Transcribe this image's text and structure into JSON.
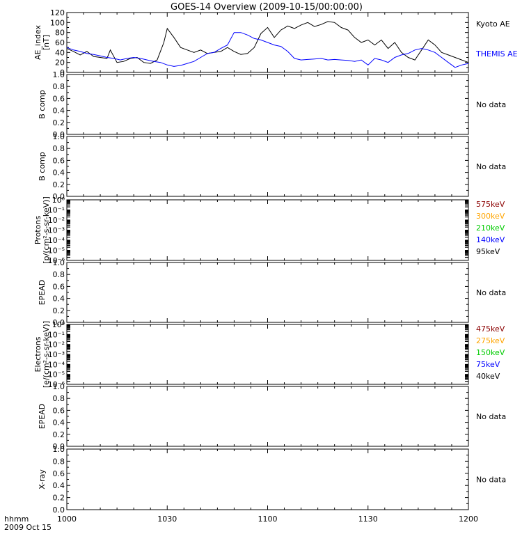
{
  "title": "GOES-14 Overview (2009-10-15/00:00:00)",
  "x_axis": {
    "label_line1": "hhmm",
    "label_line2": "2009 Oct 15",
    "ticks": [
      "1000",
      "1030",
      "1100",
      "1130",
      "1200"
    ],
    "range_minutes": [
      0,
      120
    ]
  },
  "chart_data": [
    {
      "type": "line",
      "ylabel": [
        "AE_index",
        "[nT]"
      ],
      "ylim": [
        0,
        120
      ],
      "yticks": [
        "0",
        "20",
        "40",
        "60",
        "80",
        "100",
        "120"
      ],
      "series": [
        {
          "name": "Kyoto AE",
          "color": "#000000",
          "x": [
            0,
            2,
            4,
            6,
            8,
            10,
            12,
            13,
            15,
            17,
            19,
            21,
            23,
            25,
            27,
            29,
            30,
            32,
            34,
            36,
            38,
            40,
            42,
            44,
            46,
            48,
            50,
            52,
            54,
            56,
            58,
            60,
            62,
            64,
            66,
            68,
            70,
            72,
            74,
            76,
            78,
            80,
            82,
            84,
            86,
            88,
            90,
            92,
            94,
            96,
            98,
            100,
            102,
            104,
            106,
            108,
            110,
            112,
            114,
            116,
            118,
            120
          ],
          "y": [
            48,
            42,
            35,
            42,
            32,
            30,
            28,
            45,
            20,
            22,
            28,
            30,
            20,
            18,
            25,
            60,
            88,
            70,
            50,
            45,
            40,
            45,
            38,
            40,
            42,
            50,
            42,
            36,
            38,
            50,
            78,
            90,
            70,
            85,
            93,
            88,
            95,
            100,
            92,
            96,
            102,
            100,
            90,
            85,
            70,
            60,
            65,
            55,
            65,
            48,
            60,
            40,
            30,
            25,
            45,
            65,
            55,
            40,
            35,
            30,
            25,
            20
          ]
        },
        {
          "name": "THEMIS AE",
          "color": "#0000ff",
          "x": [
            0,
            2,
            4,
            6,
            8,
            10,
            12,
            14,
            16,
            18,
            20,
            22,
            24,
            26,
            28,
            30,
            32,
            34,
            36,
            38,
            40,
            42,
            44,
            46,
            48,
            50,
            52,
            54,
            56,
            58,
            60,
            62,
            64,
            66,
            68,
            70,
            72,
            74,
            76,
            78,
            80,
            82,
            84,
            86,
            88,
            90,
            92,
            94,
            96,
            98,
            100,
            102,
            104,
            106,
            108,
            110,
            112,
            114,
            116,
            118,
            120
          ],
          "y": [
            50,
            45,
            42,
            38,
            36,
            33,
            30,
            28,
            25,
            28,
            30,
            28,
            25,
            22,
            20,
            15,
            12,
            14,
            18,
            22,
            30,
            38,
            40,
            48,
            55,
            80,
            80,
            75,
            68,
            65,
            60,
            55,
            52,
            42,
            28,
            25,
            26,
            27,
            28,
            25,
            26,
            25,
            24,
            22,
            25,
            15,
            28,
            25,
            20,
            30,
            35,
            38,
            45,
            48,
            45,
            40,
            30,
            20,
            10,
            15,
            18
          ]
        }
      ]
    },
    {
      "type": "line",
      "ylabel": [
        "B comp"
      ],
      "ylim": [
        0,
        1
      ],
      "yticks": [
        "0.0",
        "0.2",
        "0.4",
        "0.6",
        "0.8",
        "1.0"
      ],
      "note": "No data",
      "series": []
    },
    {
      "type": "line",
      "ylabel": [
        "B comp"
      ],
      "ylim": [
        0,
        1
      ],
      "yticks": [
        "0.0",
        "0.2",
        "0.4",
        "0.6",
        "0.8",
        "1.0"
      ],
      "note": "No data",
      "series": []
    },
    {
      "type": "line",
      "ylabel": [
        "Protons",
        "[p/(cm²-s-sr-keV)]"
      ],
      "log_scale": true,
      "ylim": [
        1e-06,
        1
      ],
      "yticks": [
        "10⁻⁶",
        "10⁻⁵",
        "10⁻⁴",
        "10⁻³",
        "10⁻²",
        "10⁻¹",
        "10⁰"
      ],
      "legend": [
        {
          "label": "575keV",
          "color": "#8b0000"
        },
        {
          "label": "300keV",
          "color": "#ffa500"
        },
        {
          "label": "210keV",
          "color": "#00cc00"
        },
        {
          "label": "140keV",
          "color": "#0000ff"
        },
        {
          "label": "95keV",
          "color": "#000000"
        }
      ],
      "series": []
    },
    {
      "type": "line",
      "ylabel": [
        "EPEAD"
      ],
      "ylim": [
        0,
        1
      ],
      "yticks": [
        "0.0",
        "0.2",
        "0.4",
        "0.6",
        "0.8",
        "1.0"
      ],
      "note": "No data",
      "series": []
    },
    {
      "type": "line",
      "ylabel": [
        "Electrons",
        "[e/(cm²-s-sr-keV)]"
      ],
      "log_scale": true,
      "ylim": [
        1e-06,
        1
      ],
      "yticks": [
        "10⁻⁶",
        "10⁻⁵",
        "10⁻⁴",
        "10⁻³",
        "10⁻²",
        "10⁻¹",
        "10⁰"
      ],
      "legend": [
        {
          "label": "475keV",
          "color": "#8b0000"
        },
        {
          "label": "275keV",
          "color": "#ffa500"
        },
        {
          "label": "150keV",
          "color": "#00cc00"
        },
        {
          "label": "75keV",
          "color": "#0000ff"
        },
        {
          "label": "40keV",
          "color": "#000000"
        }
      ],
      "series": []
    },
    {
      "type": "line",
      "ylabel": [
        "EPEAD"
      ],
      "ylim": [
        0,
        1
      ],
      "yticks": [
        "0.0",
        "0.2",
        "0.4",
        "0.6",
        "0.8",
        "1.0"
      ],
      "note": "No data",
      "series": []
    },
    {
      "type": "line",
      "ylabel": [
        "X-ray"
      ],
      "ylim": [
        0,
        1
      ],
      "yticks": [
        "0.0",
        "0.2",
        "0.4",
        "0.6",
        "0.8",
        "1.0"
      ],
      "note": "No data",
      "series": []
    }
  ]
}
